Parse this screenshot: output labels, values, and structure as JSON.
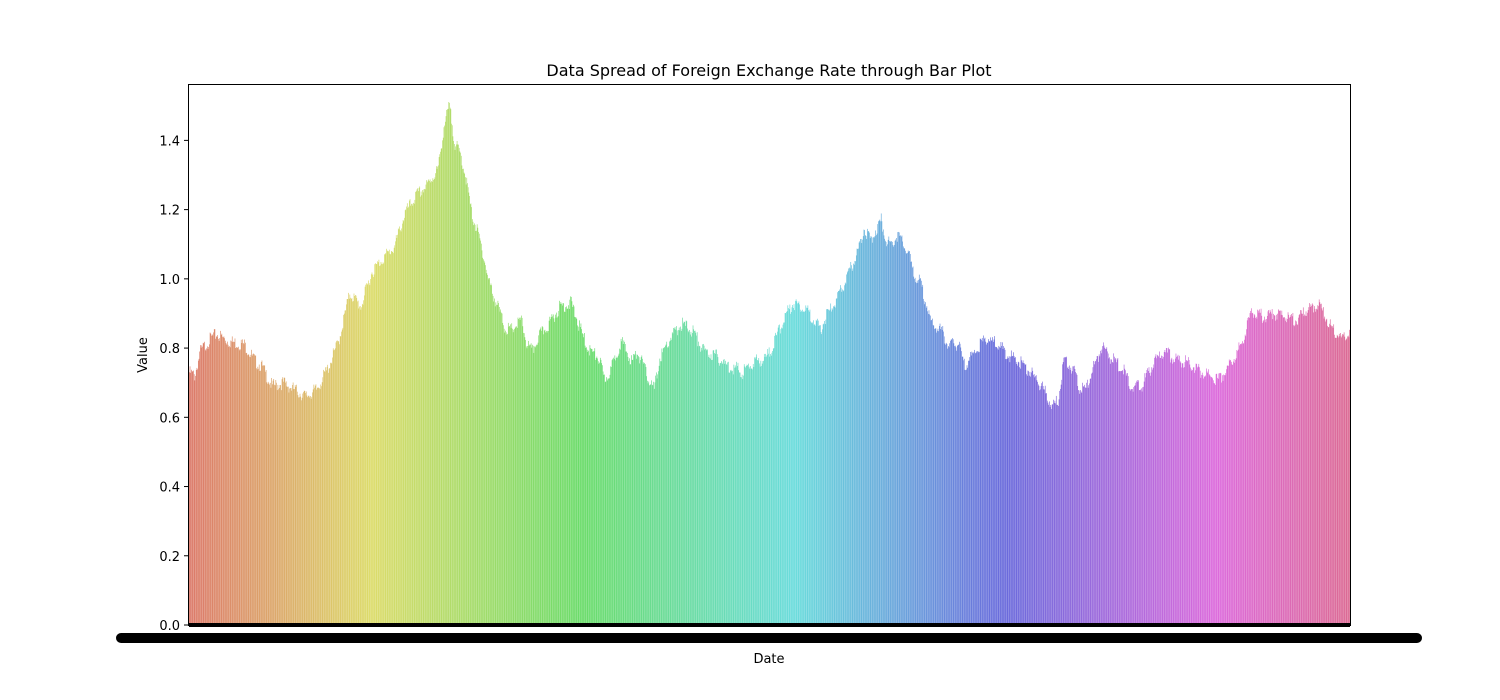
{
  "chart_data": {
    "type": "bar",
    "title": "Data Spread of Foreign Exchange Rate through Bar Plot",
    "xlabel": "Date",
    "ylabel": "Value",
    "ylim": [
      0,
      1.56
    ],
    "yticks": [
      0.0,
      0.2,
      0.4,
      0.6,
      0.8,
      1.0,
      1.2,
      1.4
    ],
    "ytick_labels": [
      "0.0",
      "0.2",
      "0.4",
      "0.6",
      "0.8",
      "1.0",
      "1.2",
      "1.4"
    ],
    "grid": false,
    "legend": "none",
    "series_profile": [
      [
        0,
        0.74
      ],
      [
        8,
        0.73
      ],
      [
        16,
        0.8
      ],
      [
        32,
        0.84
      ],
      [
        40,
        0.85
      ],
      [
        56,
        0.83
      ],
      [
        80,
        0.82
      ],
      [
        96,
        0.77
      ],
      [
        104,
        0.76
      ],
      [
        120,
        0.7
      ],
      [
        136,
        0.71
      ],
      [
        152,
        0.69
      ],
      [
        168,
        0.67
      ],
      [
        184,
        0.69
      ],
      [
        200,
        0.75
      ],
      [
        216,
        0.83
      ],
      [
        232,
        0.97
      ],
      [
        248,
        0.93
      ],
      [
        264,
        1.03
      ],
      [
        280,
        1.07
      ],
      [
        296,
        1.1
      ],
      [
        312,
        1.2
      ],
      [
        328,
        1.25
      ],
      [
        344,
        1.28
      ],
      [
        360,
        1.33
      ],
      [
        368,
        1.45
      ],
      [
        376,
        1.51
      ],
      [
        384,
        1.4
      ],
      [
        392,
        1.37
      ],
      [
        400,
        1.3
      ],
      [
        408,
        1.2
      ],
      [
        416,
        1.15
      ],
      [
        424,
        1.09
      ],
      [
        432,
        1.01
      ],
      [
        440,
        0.96
      ],
      [
        448,
        0.92
      ],
      [
        456,
        0.87
      ],
      [
        464,
        0.86
      ],
      [
        480,
        0.89
      ],
      [
        488,
        0.82
      ],
      [
        496,
        0.8
      ],
      [
        504,
        0.84
      ],
      [
        520,
        0.88
      ],
      [
        536,
        0.93
      ],
      [
        552,
        0.94
      ],
      [
        568,
        0.85
      ],
      [
        576,
        0.81
      ],
      [
        592,
        0.78
      ],
      [
        600,
        0.72
      ],
      [
        608,
        0.74
      ],
      [
        624,
        0.83
      ],
      [
        640,
        0.77
      ],
      [
        648,
        0.8
      ],
      [
        664,
        0.72
      ],
      [
        672,
        0.69
      ],
      [
        680,
        0.78
      ],
      [
        696,
        0.84
      ],
      [
        712,
        0.88
      ],
      [
        728,
        0.86
      ],
      [
        744,
        0.8
      ],
      [
        760,
        0.79
      ],
      [
        776,
        0.76
      ],
      [
        792,
        0.75
      ],
      [
        800,
        0.74
      ],
      [
        816,
        0.77
      ],
      [
        832,
        0.78
      ],
      [
        840,
        0.8
      ],
      [
        856,
        0.88
      ],
      [
        872,
        0.94
      ],
      [
        888,
        0.93
      ],
      [
        904,
        0.89
      ],
      [
        912,
        0.86
      ],
      [
        920,
        0.9
      ],
      [
        936,
        0.95
      ],
      [
        952,
        1.02
      ],
      [
        960,
        1.06
      ],
      [
        968,
        1.1
      ],
      [
        976,
        1.16
      ],
      [
        984,
        1.12
      ],
      [
        1000,
        1.18
      ],
      [
        1008,
        1.12
      ],
      [
        1016,
        1.11
      ],
      [
        1024,
        1.14
      ],
      [
        1040,
        1.08
      ],
      [
        1048,
        1.02
      ],
      [
        1056,
        1.0
      ],
      [
        1064,
        0.95
      ],
      [
        1072,
        0.88
      ],
      [
        1088,
        0.86
      ],
      [
        1096,
        0.82
      ],
      [
        1112,
        0.82
      ],
      [
        1120,
        0.76
      ],
      [
        1136,
        0.8
      ],
      [
        1152,
        0.84
      ],
      [
        1168,
        0.82
      ],
      [
        1184,
        0.79
      ],
      [
        1200,
        0.77
      ],
      [
        1216,
        0.74
      ],
      [
        1232,
        0.7
      ],
      [
        1240,
        0.67
      ],
      [
        1248,
        0.64
      ],
      [
        1256,
        0.66
      ],
      [
        1264,
        0.78
      ],
      [
        1280,
        0.74
      ],
      [
        1288,
        0.69
      ],
      [
        1296,
        0.69
      ],
      [
        1304,
        0.74
      ],
      [
        1320,
        0.82
      ],
      [
        1328,
        0.79
      ],
      [
        1344,
        0.76
      ],
      [
        1352,
        0.74
      ],
      [
        1360,
        0.7
      ],
      [
        1376,
        0.7
      ],
      [
        1392,
        0.76
      ],
      [
        1408,
        0.8
      ],
      [
        1424,
        0.78
      ],
      [
        1440,
        0.77
      ],
      [
        1456,
        0.75
      ],
      [
        1472,
        0.73
      ],
      [
        1488,
        0.72
      ],
      [
        1504,
        0.76
      ],
      [
        1520,
        0.82
      ],
      [
        1536,
        0.92
      ],
      [
        1552,
        0.9
      ],
      [
        1568,
        0.91
      ],
      [
        1584,
        0.9
      ],
      [
        1600,
        0.89
      ],
      [
        1616,
        0.92
      ],
      [
        1632,
        0.94
      ],
      [
        1648,
        0.88
      ],
      [
        1664,
        0.84
      ],
      [
        1677,
        0.85
      ]
    ],
    "n_bars": 1678
  }
}
